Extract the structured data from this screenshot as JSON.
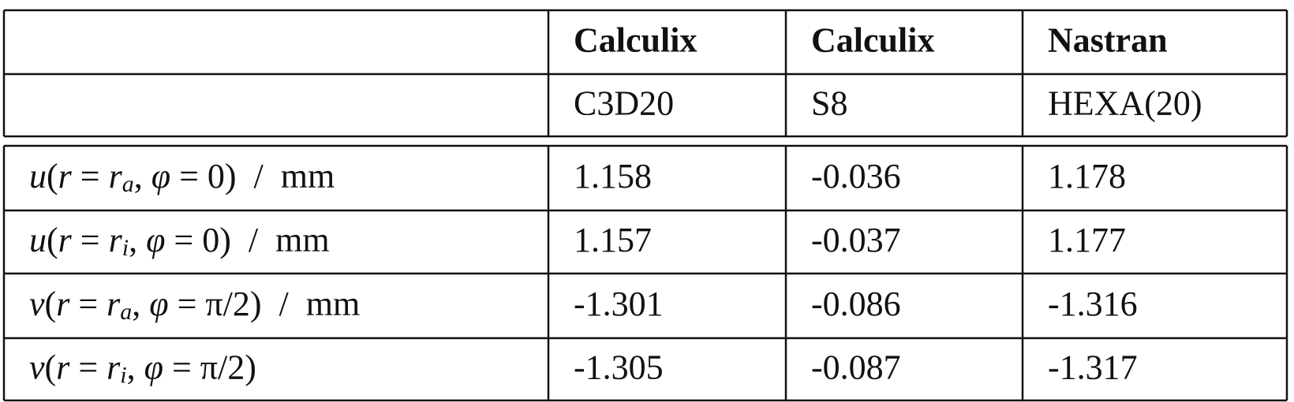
{
  "table": {
    "header": [
      [
        "",
        "Calculix",
        "Calculix",
        "Nastran"
      ],
      [
        "",
        "C3D20",
        "S8",
        "HEXA(20)"
      ]
    ],
    "rows": [
      {
        "label": [
          {
            "text": "u",
            "style": "i"
          },
          {
            "text": "(",
            "style": "n"
          },
          {
            "text": "r",
            "style": "i"
          },
          {
            "text": " = ",
            "style": "n"
          },
          {
            "text": "r",
            "style": "i"
          },
          {
            "text": "a",
            "style": "sub"
          },
          {
            "text": ", ",
            "style": "n"
          },
          {
            "text": "φ",
            "style": "i"
          },
          {
            "text": " = 0)  /  mm",
            "style": "n"
          }
        ],
        "values": [
          "1.158",
          "-0.036",
          "1.178"
        ]
      },
      {
        "label": [
          {
            "text": "u",
            "style": "i"
          },
          {
            "text": "(",
            "style": "n"
          },
          {
            "text": "r",
            "style": "i"
          },
          {
            "text": " = ",
            "style": "n"
          },
          {
            "text": "r",
            "style": "i"
          },
          {
            "text": "i",
            "style": "sub"
          },
          {
            "text": ", ",
            "style": "n"
          },
          {
            "text": "φ",
            "style": "i"
          },
          {
            "text": " = 0)  /  mm",
            "style": "n"
          }
        ],
        "values": [
          "1.157",
          "-0.037",
          "1.177"
        ]
      },
      {
        "label": [
          {
            "text": "v",
            "style": "i"
          },
          {
            "text": "(",
            "style": "n"
          },
          {
            "text": "r",
            "style": "i"
          },
          {
            "text": " = ",
            "style": "n"
          },
          {
            "text": "r",
            "style": "i"
          },
          {
            "text": "a",
            "style": "sub"
          },
          {
            "text": ", ",
            "style": "n"
          },
          {
            "text": "φ",
            "style": "i"
          },
          {
            "text": " = π/2)  /  mm",
            "style": "n"
          }
        ],
        "values": [
          "-1.301",
          "-0.086",
          "-1.316"
        ]
      },
      {
        "label": [
          {
            "text": "v",
            "style": "i"
          },
          {
            "text": "(",
            "style": "n"
          },
          {
            "text": "r",
            "style": "i"
          },
          {
            "text": " = ",
            "style": "n"
          },
          {
            "text": "r",
            "style": "i"
          },
          {
            "text": "i",
            "style": "sub"
          },
          {
            "text": ", ",
            "style": "n"
          },
          {
            "text": "φ",
            "style": "i"
          },
          {
            "text": " = π/2)",
            "style": "n"
          }
        ],
        "values": [
          "-1.305",
          "-0.087",
          "-1.317"
        ]
      }
    ]
  }
}
